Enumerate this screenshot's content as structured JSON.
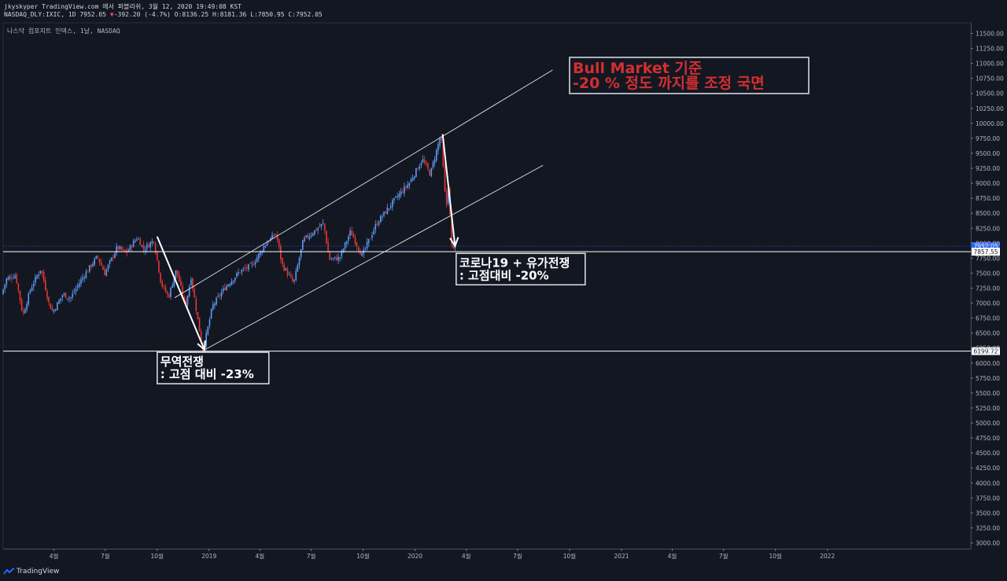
{
  "header": {
    "publish_line": "jkyskyper TradingView.com 에서 퍼블리쉬, 3월 12, 2020 19:49:08 KST",
    "symbol": "NASDAQ_DLY:IXIC, 1D",
    "last": "7952.05",
    "change_arrow": "▼",
    "change": "-392.20 (-4.7%)",
    "ohlc_o": "O:8136.25",
    "ohlc_h": "H:8181.36",
    "ohlc_l": "L:7850.95",
    "ohlc_c": "C:7952.05"
  },
  "subtitle": "나스닥 컴포지트 인덱스, 1날, NASDAQ",
  "footer": {
    "brand": "TradingView"
  },
  "chart_data": {
    "type": "candlestick",
    "title": "",
    "y_axis": {
      "min": 2900,
      "max": 11650,
      "step": 250,
      "tick_labels": [
        "11500.00",
        "11250.00",
        "11000.00",
        "10750.00",
        "10500.00",
        "10250.00",
        "10000.00",
        "9750.00",
        "9500.00",
        "9250.00",
        "9000.00",
        "8750.00",
        "8500.00",
        "8250.00",
        "8000.00",
        "7750.00",
        "7500.00",
        "7250.00",
        "7000.00",
        "6750.00",
        "6500.00",
        "6250.00",
        "6000.00",
        "5750.00",
        "5500.00",
        "5250.00",
        "5000.00",
        "4750.00",
        "4500.00",
        "4250.00",
        "4000.00",
        "3750.00",
        "3500.00",
        "3250.00",
        "3000.00"
      ]
    },
    "x_axis": {
      "start": "2018-01-01",
      "end": "2022-09-15",
      "tick_labels": [
        {
          "label": "4월",
          "date": "2018-04-01"
        },
        {
          "label": "7월",
          "date": "2018-07-01"
        },
        {
          "label": "10월",
          "date": "2018-10-01"
        },
        {
          "label": "2019",
          "date": "2019-01-01"
        },
        {
          "label": "4월",
          "date": "2019-04-01"
        },
        {
          "label": "7월",
          "date": "2019-07-01"
        },
        {
          "label": "10월",
          "date": "2019-10-01"
        },
        {
          "label": "2020",
          "date": "2020-01-01"
        },
        {
          "label": "4월",
          "date": "2020-04-01"
        },
        {
          "label": "7월",
          "date": "2020-07-01"
        },
        {
          "label": "10월",
          "date": "2020-10-01"
        },
        {
          "label": "2021",
          "date": "2021-01-01"
        },
        {
          "label": "4월",
          "date": "2021-04-01"
        },
        {
          "label": "7월",
          "date": "2021-07-01"
        },
        {
          "label": "10월",
          "date": "2021-10-01"
        },
        {
          "label": "2022",
          "date": "2022-01-01"
        }
      ]
    },
    "price_path": [
      [
        "2018-01-01",
        7150
      ],
      [
        "2018-01-10",
        7400
      ],
      [
        "2018-01-26",
        7470
      ],
      [
        "2018-02-08",
        6800
      ],
      [
        "2018-02-22",
        7250
      ],
      [
        "2018-03-12",
        7580
      ],
      [
        "2018-03-26",
        7000
      ],
      [
        "2018-04-02",
        6850
      ],
      [
        "2018-04-20",
        7150
      ],
      [
        "2018-05-03",
        7080
      ],
      [
        "2018-05-25",
        7430
      ],
      [
        "2018-06-20",
        7780
      ],
      [
        "2018-07-03",
        7500
      ],
      [
        "2018-07-25",
        7930
      ],
      [
        "2018-08-10",
        7840
      ],
      [
        "2018-08-30",
        8100
      ],
      [
        "2018-09-10",
        7900
      ],
      [
        "2018-09-28",
        8050
      ],
      [
        "2018-10-11",
        7330
      ],
      [
        "2018-10-24",
        7100
      ],
      [
        "2018-11-07",
        7560
      ],
      [
        "2018-11-23",
        6940
      ],
      [
        "2018-12-03",
        7440
      ],
      [
        "2018-12-24",
        6190
      ],
      [
        "2019-01-10",
        6950
      ],
      [
        "2019-02-01",
        7260
      ],
      [
        "2019-02-28",
        7530
      ],
      [
        "2019-03-22",
        7640
      ],
      [
        "2019-04-15",
        8000
      ],
      [
        "2019-05-03",
        8160
      ],
      [
        "2019-05-13",
        7650
      ],
      [
        "2019-06-03",
        7330
      ],
      [
        "2019-06-20",
        8050
      ],
      [
        "2019-07-26",
        8330
      ],
      [
        "2019-08-05",
        7730
      ],
      [
        "2019-08-23",
        7750
      ],
      [
        "2019-09-12",
        8200
      ],
      [
        "2019-10-02",
        7790
      ],
      [
        "2019-10-28",
        8330
      ],
      [
        "2019-11-27",
        8700
      ],
      [
        "2019-12-26",
        9020
      ],
      [
        "2020-01-17",
        9400
      ],
      [
        "2020-01-31",
        9150
      ],
      [
        "2020-02-19",
        9817
      ],
      [
        "2020-02-28",
        8560
      ],
      [
        "2020-03-03",
        8950
      ],
      [
        "2020-03-09",
        7950
      ],
      [
        "2020-03-11",
        8150
      ],
      [
        "2020-03-12",
        7952
      ]
    ],
    "horizontal_levels": [
      {
        "price": 7952.05,
        "label": "7952.05",
        "style": "dotted",
        "color": "#2962ff"
      },
      {
        "price": 7857.55,
        "label": "7857.55",
        "style": "solid",
        "color": "#ffffff"
      },
      {
        "price": 6199.72,
        "label": "6199.72",
        "style": "solid",
        "color": "#ffffff"
      }
    ],
    "channel_lines": [
      {
        "from": [
          "2018-11-01",
          7090
        ],
        "to": [
          "2020-09-01",
          10890
        ]
      },
      {
        "from": [
          "2018-12-24",
          6220
        ],
        "to": [
          "2020-08-15",
          9300
        ]
      }
    ],
    "arrows": [
      {
        "from": [
          "2018-10-01",
          8110
        ],
        "to": [
          "2018-12-24",
          6220
        ]
      },
      {
        "from": [
          "2020-02-19",
          9820
        ],
        "to": [
          "2020-03-12",
          7952
        ]
      }
    ],
    "annotations": [
      {
        "id": "trade-war",
        "lines": [
          "무역전쟁",
          ": 고점 대비 -23%"
        ],
        "color": "#ffffff",
        "anchor": [
          "2018-10-01",
          6180
        ]
      },
      {
        "id": "covid",
        "lines": [
          "코로나19 + 유가전쟁",
          ": 고점대비 -20%"
        ],
        "color": "#ffffff",
        "anchor": [
          "2020-03-14",
          7830
        ]
      },
      {
        "id": "bull-market",
        "lines": [
          "Bull Market 기준",
          " -20 % 정도 까지를 조정 국면"
        ],
        "color": "#d32f2f",
        "anchor": [
          "2020-10-01",
          11100
        ]
      }
    ],
    "colors": {
      "up": "#5b9cf6",
      "down": "#e53935",
      "background": "#131722",
      "axis_text": "#b2b5be"
    }
  }
}
